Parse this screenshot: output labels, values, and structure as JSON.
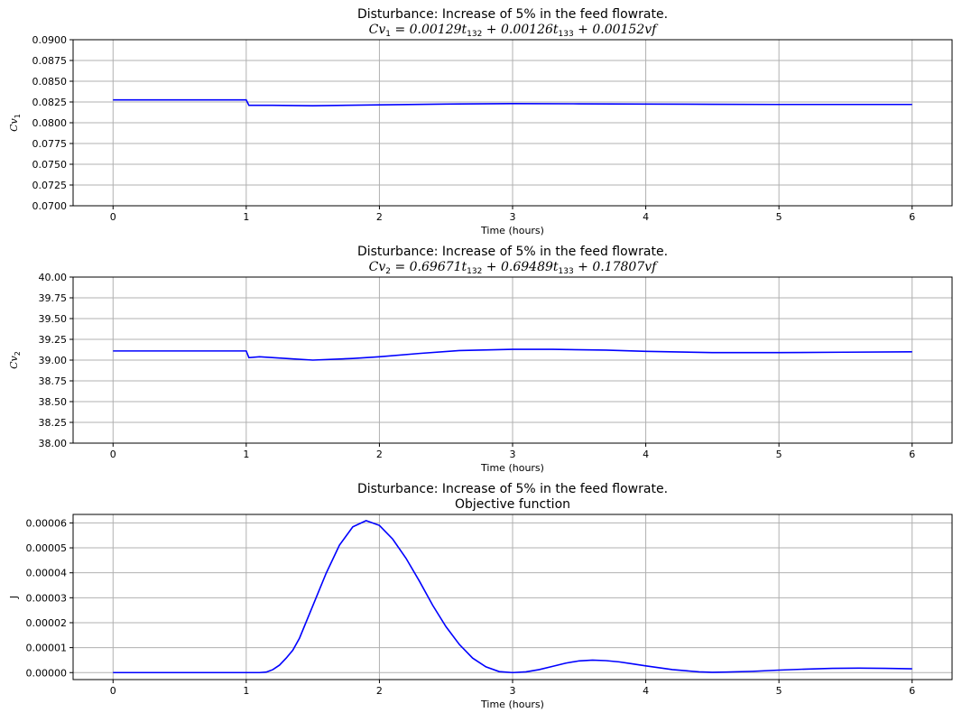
{
  "chart_data": [
    {
      "type": "line",
      "title_line1": "Disturbance: Increase of 5% in the feed flowrate.",
      "title_line2": {
        "lhs": "Cv",
        "lhs_sub": "1",
        "rhs": "= 0.00129t",
        "t1": "132",
        "mid": " + 0.00126t",
        "t2": "133",
        "end": " + 0.00152vf"
      },
      "xlabel": "Time (hours)",
      "ylabel": {
        "main": "Cv",
        "sub": "1"
      },
      "xlim": [
        -0.3,
        6.3
      ],
      "ylim": [
        0.07,
        0.09
      ],
      "xticks": [
        0,
        1,
        2,
        3,
        4,
        5,
        6
      ],
      "xtick_labels": [
        "0",
        "1",
        "2",
        "3",
        "4",
        "5",
        "6"
      ],
      "yticks": [
        0.07,
        0.0725,
        0.075,
        0.0775,
        0.08,
        0.0825,
        0.085,
        0.0875,
        0.09
      ],
      "ytick_labels": [
        "0.0700",
        "0.0725",
        "0.0750",
        "0.0775",
        "0.0800",
        "0.0825",
        "0.0850",
        "0.0875",
        "0.0900"
      ],
      "grid": true,
      "color": "#0000ff",
      "series": [
        {
          "x": [
            0,
            1.0,
            1.02,
            1.2,
            1.5,
            2.0,
            2.5,
            3.0,
            3.5,
            4.0,
            4.5,
            5.0,
            5.5,
            6.0
          ],
          "y": [
            0.08275,
            0.08275,
            0.0821,
            0.0821,
            0.08205,
            0.08215,
            0.08225,
            0.0823,
            0.08228,
            0.08225,
            0.08222,
            0.0822,
            0.0822,
            0.0822
          ]
        }
      ]
    },
    {
      "type": "line",
      "title_line1": "Disturbance: Increase of 5% in the feed flowrate.",
      "title_line2": {
        "lhs": "Cv",
        "lhs_sub": "2",
        "rhs": "= 0.69671t",
        "t1": "132",
        "mid": " + 0.69489t",
        "t2": "133",
        "end": " + 0.17807vf"
      },
      "xlabel": "Time (hours)",
      "ylabel": {
        "main": "Cv",
        "sub": "2"
      },
      "xlim": [
        -0.3,
        6.3
      ],
      "ylim": [
        38.0,
        40.0
      ],
      "xticks": [
        0,
        1,
        2,
        3,
        4,
        5,
        6
      ],
      "xtick_labels": [
        "0",
        "1",
        "2",
        "3",
        "4",
        "5",
        "6"
      ],
      "yticks": [
        38.0,
        38.25,
        38.5,
        38.75,
        39.0,
        39.25,
        39.5,
        39.75,
        40.0
      ],
      "ytick_labels": [
        "38.00",
        "38.25",
        "38.50",
        "38.75",
        "39.00",
        "39.25",
        "39.50",
        "39.75",
        "40.00"
      ],
      "grid": true,
      "color": "#0000ff",
      "series": [
        {
          "x": [
            0,
            1.0,
            1.02,
            1.1,
            1.3,
            1.5,
            1.8,
            2.0,
            2.3,
            2.6,
            3.0,
            3.3,
            3.7,
            4.0,
            4.5,
            5.0,
            5.5,
            6.0
          ],
          "y": [
            39.11,
            39.11,
            39.03,
            39.04,
            39.02,
            39.0,
            39.02,
            39.04,
            39.08,
            39.115,
            39.13,
            39.13,
            39.12,
            39.105,
            39.09,
            39.09,
            39.095,
            39.1
          ]
        }
      ]
    },
    {
      "type": "line",
      "title_line1": "Disturbance: Increase of 5% in the feed flowrate.",
      "title_line2_plain": "Objective function",
      "xlabel": "Time (hours)",
      "ylabel_plain": "J",
      "xlim": [
        -0.3,
        6.3
      ],
      "ylim": [
        -2.8e-06,
        6.34e-05
      ],
      "xticks": [
        0,
        1,
        2,
        3,
        4,
        5,
        6
      ],
      "xtick_labels": [
        "0",
        "1",
        "2",
        "3",
        "4",
        "5",
        "6"
      ],
      "yticks": [
        0.0,
        1e-05,
        2e-05,
        3e-05,
        4e-05,
        5e-05,
        6e-05
      ],
      "ytick_labels": [
        "0.00000",
        "0.00001",
        "0.00002",
        "0.00003",
        "0.00004",
        "0.00005",
        "0.00006"
      ],
      "grid": true,
      "color": "#0000ff",
      "series": [
        {
          "x": [
            0,
            1.0,
            1.1,
            1.15,
            1.2,
            1.25,
            1.3,
            1.35,
            1.4,
            1.5,
            1.6,
            1.7,
            1.8,
            1.9,
            2.0,
            2.1,
            2.2,
            2.3,
            2.4,
            2.5,
            2.6,
            2.7,
            2.8,
            2.9,
            3.0,
            3.1,
            3.2,
            3.3,
            3.4,
            3.5,
            3.6,
            3.7,
            3.8,
            3.9,
            4.0,
            4.2,
            4.4,
            4.5,
            4.6,
            4.8,
            5.0,
            5.2,
            5.4,
            5.6,
            5.8,
            6.0
          ],
          "y": [
            0.0,
            0.0,
            0.0,
            2e-07,
            1.2e-06,
            3e-06,
            5.8e-06,
            9e-06,
            1.38e-05,
            2.68e-05,
            3.98e-05,
            5.11e-05,
            5.84e-05,
            6.09e-05,
            5.9e-05,
            5.35e-05,
            4.58e-05,
            3.67e-05,
            2.7e-05,
            1.84e-05,
            1.13e-05,
            5.8e-06,
            2.3e-06,
            4e-07,
            0.0,
            3e-07,
            1.2e-06,
            2.5e-06,
            3.8e-06,
            4.7e-06,
            5e-06,
            4.8e-06,
            4.3e-06,
            3.5e-06,
            2.7e-06,
            1.2e-06,
            3e-07,
            1e-07,
            2e-07,
            5e-07,
            1e-06,
            1.4e-06,
            1.7e-06,
            1.8e-06,
            1.7e-06,
            1.5e-06
          ]
        }
      ]
    }
  ]
}
